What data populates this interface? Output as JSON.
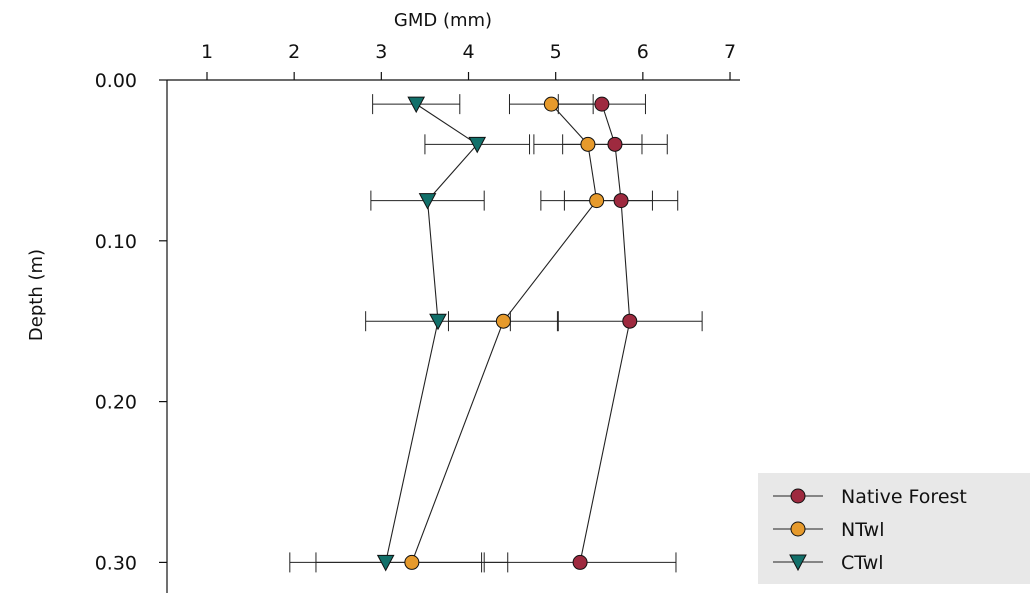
{
  "chart_data": {
    "type": "scatter",
    "xlabel": "GMD (mm)",
    "ylabel": "Depth (m)",
    "x_axis_position": "top",
    "y_axis_inverted": true,
    "xlim": [
      0.5,
      7
    ],
    "ylim": [
      0.3,
      -0.0
    ],
    "xticks": [
      1,
      2,
      3,
      4,
      5,
      6,
      7
    ],
    "yticks": [
      0.0,
      0.1,
      0.2,
      0.3
    ],
    "xtick_labels": [
      "1",
      "2",
      "3",
      "4",
      "5",
      "6",
      "7"
    ],
    "ytick_labels": [
      "0.00",
      "0.10",
      "0.20",
      "0.30"
    ],
    "grid": false,
    "legend_position": "bottom-right",
    "series": [
      {
        "name": "Native Forest",
        "marker": "circle",
        "color": "#9e2a3f",
        "points": [
          {
            "y": 0.015,
            "x": 5.53,
            "xerr": 0.5
          },
          {
            "y": 0.04,
            "x": 5.68,
            "xerr": 0.6
          },
          {
            "y": 0.075,
            "x": 5.75,
            "xerr": 0.65
          },
          {
            "y": 0.15,
            "x": 5.85,
            "xerr": 0.83
          },
          {
            "y": 0.3,
            "x": 5.28,
            "xerr": 1.1
          }
        ]
      },
      {
        "name": "NTwl",
        "marker": "circle",
        "color": "#e69a2c",
        "points": [
          {
            "y": 0.015,
            "x": 4.95,
            "xerr": 0.48
          },
          {
            "y": 0.04,
            "x": 5.37,
            "xerr": 0.62
          },
          {
            "y": 0.075,
            "x": 5.47,
            "xerr": 0.64
          },
          {
            "y": 0.15,
            "x": 4.4,
            "xerr": 0.63
          },
          {
            "y": 0.3,
            "x": 3.35,
            "xerr": 1.1
          }
        ]
      },
      {
        "name": "CTwl",
        "marker": "triangle-down",
        "color": "#12706a",
        "points": [
          {
            "y": 0.015,
            "x": 3.4,
            "xerr": 0.5
          },
          {
            "y": 0.04,
            "x": 4.1,
            "xerr": 0.6
          },
          {
            "y": 0.075,
            "x": 3.53,
            "xerr": 0.65
          },
          {
            "y": 0.15,
            "x": 3.65,
            "xerr": 0.83
          },
          {
            "y": 0.3,
            "x": 3.05,
            "xerr": 1.1
          }
        ]
      }
    ]
  }
}
